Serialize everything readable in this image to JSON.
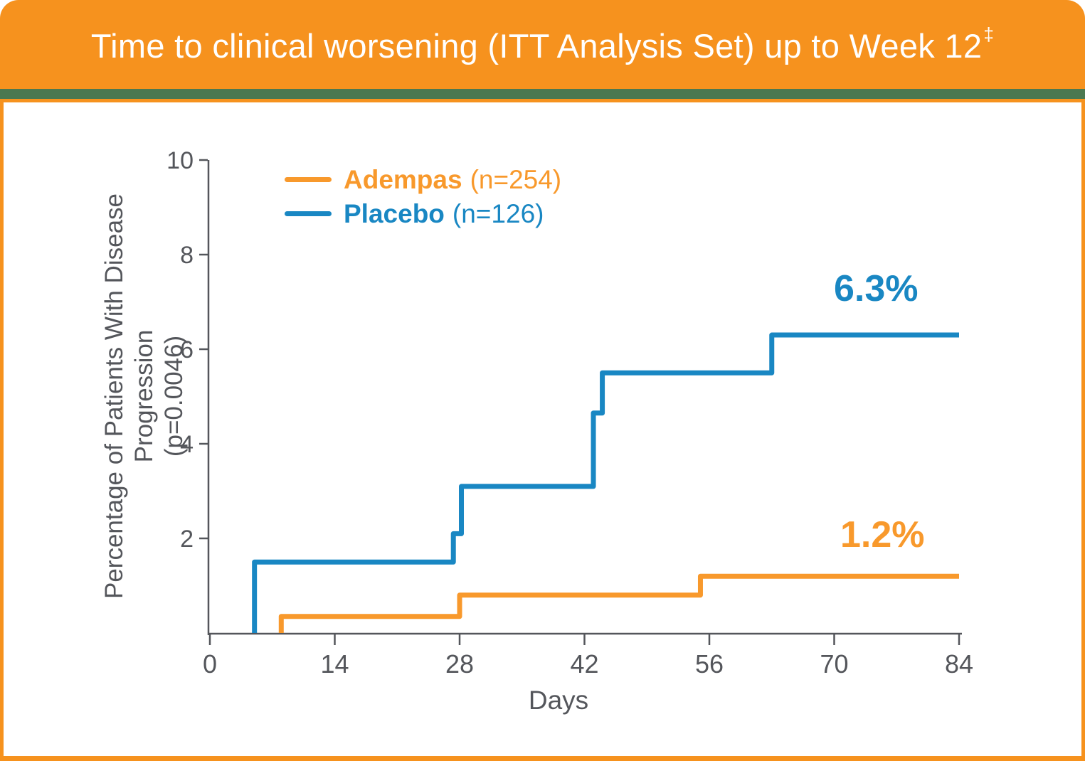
{
  "header": {
    "title": "Time to clinical worsening (ITT Analysis Set) up to Week 12",
    "superscript": "‡"
  },
  "colors": {
    "header_orange": "#F6921E",
    "stripe_green": "#4B7850",
    "panel_border": "#F6921E",
    "text_gray": "#54565B",
    "axis_gray": "#54565B"
  },
  "chart_data": {
    "type": "line",
    "subtype": "kaplan-meier-step",
    "title": "Time to clinical worsening (ITT Analysis Set) up to Week 12‡",
    "xlabel": "Days",
    "ylabel": "Percentage of Patients With Disease Progression",
    "ylabel_line2": "(p=0.0046)",
    "xlim": [
      0,
      84
    ],
    "ylim": [
      0,
      10
    ],
    "x_ticks": [
      0,
      14,
      28,
      42,
      56,
      70,
      84
    ],
    "y_ticks": [
      2,
      4,
      6,
      8,
      10
    ],
    "grid": false,
    "legend_position": "top-left inside plot",
    "series": [
      {
        "name": "Adempas",
        "n_label": "(n=254)",
        "color": "#F8992C",
        "end_label": "1.2%",
        "points": [
          [
            8,
            0
          ],
          [
            8,
            0.35
          ],
          [
            28,
            0.35
          ],
          [
            28,
            0.8
          ],
          [
            55,
            0.8
          ],
          [
            55,
            1.2
          ],
          [
            84,
            1.2
          ]
        ]
      },
      {
        "name": "Placebo",
        "n_label": "(n=126)",
        "color": "#1987C3",
        "end_label": "6.3%",
        "points": [
          [
            5,
            0
          ],
          [
            5,
            1.5
          ],
          [
            27.3,
            1.5
          ],
          [
            27.3,
            2.1
          ],
          [
            28.2,
            2.1
          ],
          [
            28.2,
            3.1
          ],
          [
            43,
            3.1
          ],
          [
            43,
            4.65
          ],
          [
            44,
            4.65
          ],
          [
            44,
            5.5
          ],
          [
            63,
            5.5
          ],
          [
            63,
            6.3
          ],
          [
            84,
            6.3
          ]
        ]
      }
    ]
  }
}
